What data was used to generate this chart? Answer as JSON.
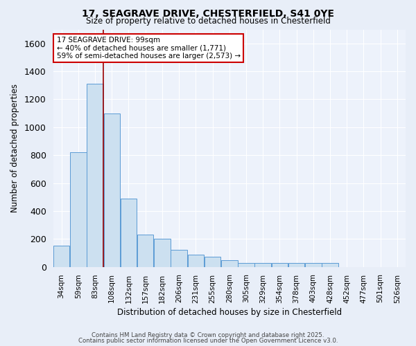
{
  "title_line1": "17, SEAGRAVE DRIVE, CHESTERFIELD, S41 0YE",
  "title_line2": "Size of property relative to detached houses in Chesterfield",
  "xlabel": "Distribution of detached houses by size in Chesterfield",
  "ylabel": "Number of detached properties",
  "bar_color": "#cce0f0",
  "bar_edge_color": "#5b9bd5",
  "background_color": "#e8eef8",
  "plot_bg_color": "#edf2fb",
  "grid_color": "#ffffff",
  "vline_color": "#990000",
  "vline_x": 2.5,
  "annotation_text": "17 SEAGRAVE DRIVE: 99sqm\n← 40% of detached houses are smaller (1,771)\n59% of semi-detached houses are larger (2,573) →",
  "annotation_box_facecolor": "#ffffff",
  "annotation_box_edgecolor": "#cc0000",
  "categories": [
    "34sqm",
    "59sqm",
    "83sqm",
    "108sqm",
    "132sqm",
    "157sqm",
    "182sqm",
    "206sqm",
    "231sqm",
    "255sqm",
    "280sqm",
    "305sqm",
    "329sqm",
    "354sqm",
    "378sqm",
    "403sqm",
    "428sqm",
    "452sqm",
    "477sqm",
    "501sqm",
    "526sqm"
  ],
  "values": [
    150,
    820,
    1310,
    1100,
    490,
    230,
    200,
    120,
    90,
    75,
    50,
    30,
    30,
    30,
    30,
    30,
    30,
    0,
    0,
    0,
    0
  ],
  "ylim": [
    0,
    1700
  ],
  "yticks": [
    0,
    200,
    400,
    600,
    800,
    1000,
    1200,
    1400,
    1600
  ],
  "footer_line1": "Contains HM Land Registry data © Crown copyright and database right 2025.",
  "footer_line2": "Contains public sector information licensed under the Open Government Licence v3.0."
}
